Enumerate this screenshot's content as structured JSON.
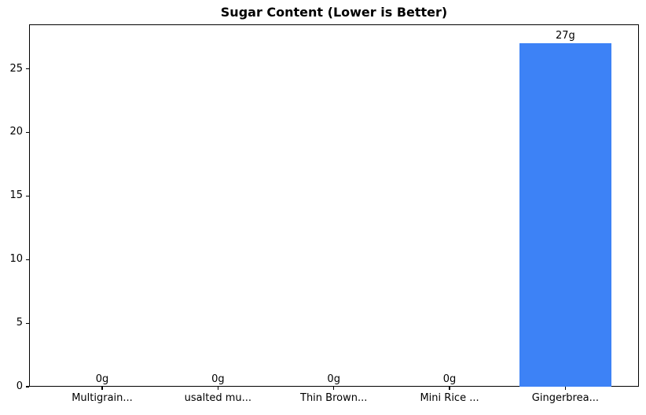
{
  "chart_data": {
    "type": "bar",
    "title": "Sugar Content (Lower is Better)",
    "categories": [
      "Multigrain...",
      "usalted mu...",
      "Thin Brown...",
      "Mini Rice ...",
      "Gingerbrea..."
    ],
    "values": [
      0,
      0,
      0,
      0,
      27
    ],
    "value_labels": [
      "0g",
      "0g",
      "0g",
      "0g",
      "27g"
    ],
    "yticks": [
      0,
      5,
      10,
      15,
      20,
      25
    ],
    "ytick_labels": [
      "0",
      "5",
      "10",
      "15",
      "20",
      "25"
    ],
    "ylim": [
      0,
      28.5
    ],
    "xlabel": "",
    "ylabel": "",
    "grid": false,
    "legend_position": "none",
    "bar_color": "#3d82f6",
    "spine_color": "#000000",
    "text_color": "#000000",
    "background_color": "#ffffff"
  }
}
